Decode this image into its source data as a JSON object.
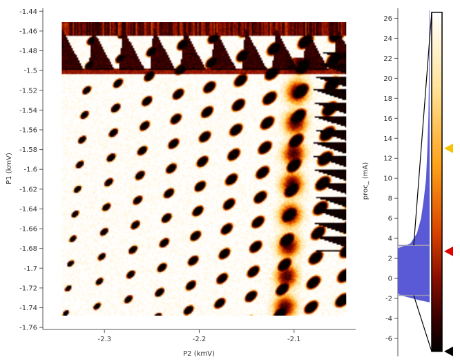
{
  "plot": {
    "xlabel": "P2 (kmV)",
    "ylabel": "P1 (kmV)",
    "x_ticks": [
      {
        "value": -2.3,
        "label": "-2.3"
      },
      {
        "value": -2.2,
        "label": "-2.2"
      },
      {
        "value": -2.1,
        "label": "-2.1"
      }
    ],
    "y_ticks": [
      {
        "value": -1.44,
        "label": "-1.44"
      },
      {
        "value": -1.46,
        "label": "-1.46"
      },
      {
        "value": -1.48,
        "label": "-1.48"
      },
      {
        "value": -1.5,
        "label": "-1.5"
      },
      {
        "value": -1.52,
        "label": "-1.52"
      },
      {
        "value": -1.54,
        "label": "-1.54"
      },
      {
        "value": -1.56,
        "label": "-1.56"
      },
      {
        "value": -1.58,
        "label": "-1.58"
      },
      {
        "value": -1.6,
        "label": "-1.6"
      },
      {
        "value": -1.62,
        "label": "-1.62"
      },
      {
        "value": -1.64,
        "label": "-1.64"
      },
      {
        "value": -1.66,
        "label": "-1.66"
      },
      {
        "value": -1.68,
        "label": "-1.68"
      },
      {
        "value": -1.7,
        "label": "-1.7"
      },
      {
        "value": -1.72,
        "label": "-1.72"
      },
      {
        "value": -1.74,
        "label": "-1.74"
      },
      {
        "value": -1.76,
        "label": "-1.76"
      }
    ],
    "xlim": [
      -2.365,
      -2.035
    ],
    "ylim": [
      -1.762,
      -1.437
    ],
    "data_xlim": [
      -2.345,
      -2.045
    ],
    "data_ylim": [
      -1.748,
      -1.451
    ],
    "cmap_colors": [
      "#000000",
      "#3a0000",
      "#8c0f00",
      "#d84400",
      "#ffa21a",
      "#ffe39a",
      "#ffffff"
    ]
  },
  "colorbar": {
    "label": "proc_ (mA)",
    "ticks": [
      {
        "value": 26,
        "label": "26"
      },
      {
        "value": 24,
        "label": "24"
      },
      {
        "value": 22,
        "label": "22"
      },
      {
        "value": 20,
        "label": "20"
      },
      {
        "value": 18,
        "label": "18"
      },
      {
        "value": 16,
        "label": "16"
      },
      {
        "value": 14,
        "label": "14"
      },
      {
        "value": 12,
        "label": "12"
      },
      {
        "value": 10,
        "label": "10"
      },
      {
        "value": 8,
        "label": "8"
      },
      {
        "value": 6,
        "label": "6"
      },
      {
        "value": 4,
        "label": "4"
      },
      {
        "value": 2,
        "label": "2"
      },
      {
        "value": 0,
        "label": "0"
      },
      {
        "value": -2,
        "label": "-2"
      },
      {
        "value": -4,
        "label": "-4"
      },
      {
        "value": -6,
        "label": "-6"
      }
    ],
    "axis_range": [
      -7.8,
      27.0
    ],
    "range_min": -7.3,
    "range_max": 26.6,
    "histogram_colour": "#5a5ad6",
    "selected_low": -1.7,
    "selected_high": 3.3,
    "handles": [
      {
        "name": "handle-top",
        "value": 13.0,
        "colour": "#f5c400"
      },
      {
        "name": "handle-mid",
        "value": 2.7,
        "colour": "#e00000"
      },
      {
        "name": "handle-bottom",
        "value": -7.3,
        "colour": "#000000"
      }
    ],
    "histogram": [
      {
        "value": 26.8,
        "count": 0.01
      },
      {
        "value": 20.0,
        "count": 0.02
      },
      {
        "value": 16.0,
        "count": 0.04
      },
      {
        "value": 13.0,
        "count": 0.07
      },
      {
        "value": 10.0,
        "count": 0.11
      },
      {
        "value": 8.0,
        "count": 0.18
      },
      {
        "value": 6.0,
        "count": 0.27
      },
      {
        "value": 4.5,
        "count": 0.4
      },
      {
        "value": 3.5,
        "count": 0.6
      },
      {
        "value": 3.0,
        "count": 1.0
      },
      {
        "value": 0.0,
        "count": 1.0
      },
      {
        "value": -1.5,
        "count": 1.0
      },
      {
        "value": -1.7,
        "count": 0.9
      },
      {
        "value": -2.2,
        "count": 0.3
      },
      {
        "value": -2.4,
        "count": 0.0
      }
    ]
  }
}
